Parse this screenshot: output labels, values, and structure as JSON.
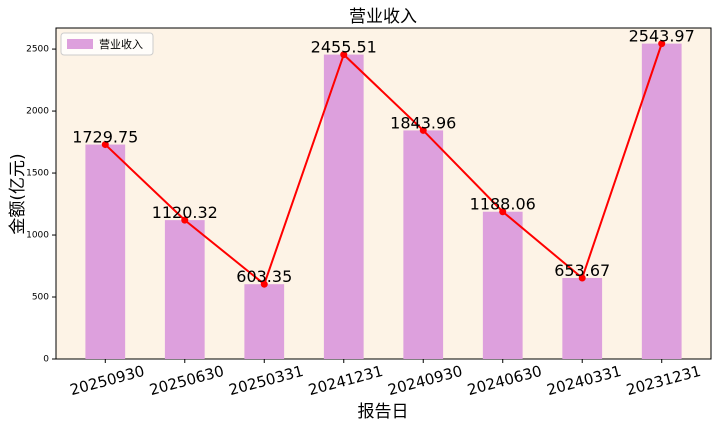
{
  "chart_data": {
    "type": "bar",
    "title": "营业收入",
    "x_label": "报告日",
    "y_label": "金额(亿元)",
    "categories": [
      "20250930",
      "20250630",
      "20250331",
      "20241231",
      "20240930",
      "20240630",
      "20240331",
      "20231231"
    ],
    "series": [
      {
        "name": "营业收入",
        "color": "#dda0dd",
        "line_color": "#ff0000",
        "values": [
          1729.75,
          1120.32,
          603.35,
          2455.51,
          1843.96,
          1188.06,
          653.67,
          2543.97
        ]
      }
    ],
    "ylim": [
      0,
      2670
    ],
    "yticks": [
      0,
      500,
      1000,
      1500,
      2000,
      2500
    ],
    "legend": "upper left",
    "background": "#fdf3e6"
  }
}
